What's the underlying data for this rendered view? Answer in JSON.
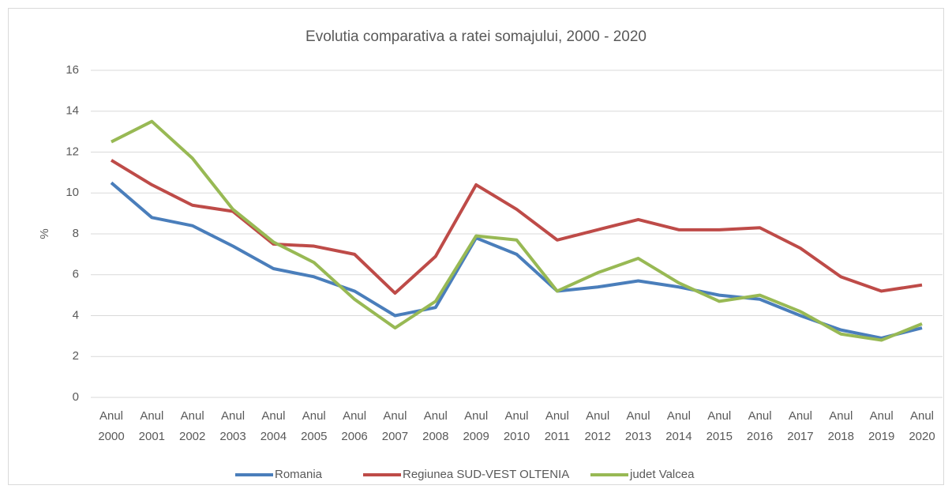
{
  "chart_data": {
    "type": "line",
    "title": "Evolutia comparativa a ratei somajului, 2000 - 2020",
    "y_label": "%",
    "categories": [
      "Anul 2000",
      "Anul 2001",
      "Anul 2002",
      "Anul 2003",
      "Anul 2004",
      "Anul 2005",
      "Anul 2006",
      "Anul 2007",
      "Anul 2008",
      "Anul 2009",
      "Anul 2010",
      "Anul 2011",
      "Anul 2012",
      "Anul 2013",
      "Anul 2014",
      "Anul 2015",
      "Anul 2016",
      "Anul 2017",
      "Anul 2018",
      "Anul 2019",
      "Anul 2020"
    ],
    "series": [
      {
        "name": "Romania",
        "color": "#4a7ebb",
        "values": [
          10.5,
          8.8,
          8.4,
          7.4,
          6.3,
          5.9,
          5.2,
          4.0,
          4.4,
          7.8,
          7.0,
          5.2,
          5.4,
          5.7,
          5.4,
          5.0,
          4.8,
          4.0,
          3.3,
          2.9,
          3.4
        ]
      },
      {
        "name": "Regiunea SUD-VEST OLTENIA",
        "color": "#be4b48",
        "values": [
          11.6,
          10.4,
          9.4,
          9.1,
          7.5,
          7.4,
          7.0,
          5.1,
          6.9,
          10.4,
          9.2,
          7.7,
          8.2,
          8.7,
          8.2,
          8.2,
          8.3,
          7.3,
          5.9,
          5.2,
          5.5
        ]
      },
      {
        "name": "judet Valcea",
        "color": "#98b954",
        "values": [
          12.5,
          13.5,
          11.7,
          9.2,
          7.6,
          6.6,
          4.8,
          3.4,
          4.7,
          7.9,
          7.7,
          5.2,
          6.1,
          6.8,
          5.6,
          4.7,
          5.0,
          4.2,
          3.1,
          2.8,
          3.6
        ]
      }
    ],
    "ylim": [
      0,
      16
    ],
    "yticks": [
      0,
      2,
      4,
      6,
      8,
      10,
      12,
      14,
      16
    ],
    "grid": true,
    "legend": "bottom"
  }
}
